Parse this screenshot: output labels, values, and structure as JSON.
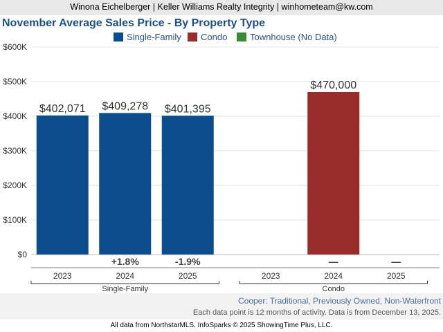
{
  "header": {
    "text": "Winona Eichelberger | Keller Williams Realty Integrity | winhometeam@kw.com"
  },
  "chart_data": {
    "type": "bar",
    "title": "November Average Sales Price - By Property Type",
    "ylim": [
      0,
      600000
    ],
    "yticks": [
      "$0",
      "$100K",
      "$200K",
      "$300K",
      "$400K",
      "$500K",
      "$600K"
    ],
    "grid": true,
    "legend_position": "top-center",
    "legend": [
      {
        "label": "Single-Family",
        "color": "#0c4d8e"
      },
      {
        "label": "Condo",
        "color": "#9b2c2c"
      },
      {
        "label": "Townhouse (No Data)",
        "color": "#3a8a3a"
      }
    ],
    "groups": [
      {
        "name": "Single-Family",
        "color": "#0c4d8e",
        "categories": [
          "2023",
          "2024",
          "2025"
        ],
        "values": [
          402071,
          409278,
          401395
        ],
        "value_labels": [
          "$402,071",
          "$409,278",
          "$401,395"
        ],
        "changes": [
          "",
          "+1.8%",
          "-1.9%"
        ]
      },
      {
        "name": "Condo",
        "color": "#9b2c2c",
        "categories": [
          "2023",
          "2024",
          "2025"
        ],
        "values": [
          null,
          470000,
          null
        ],
        "value_labels": [
          "",
          "$470,000",
          ""
        ],
        "changes": [
          "",
          "—",
          "—"
        ]
      }
    ]
  },
  "footer": {
    "subtitle": "Cooper: Traditional, Previously Owned, Non-Waterfront",
    "note": "Each data point is 12 months of activity. Data is from December 13, 2025.",
    "credit": "All data from NorthstarMLS. InfoSparks © 2025 ShowingTime Plus, LLC."
  }
}
